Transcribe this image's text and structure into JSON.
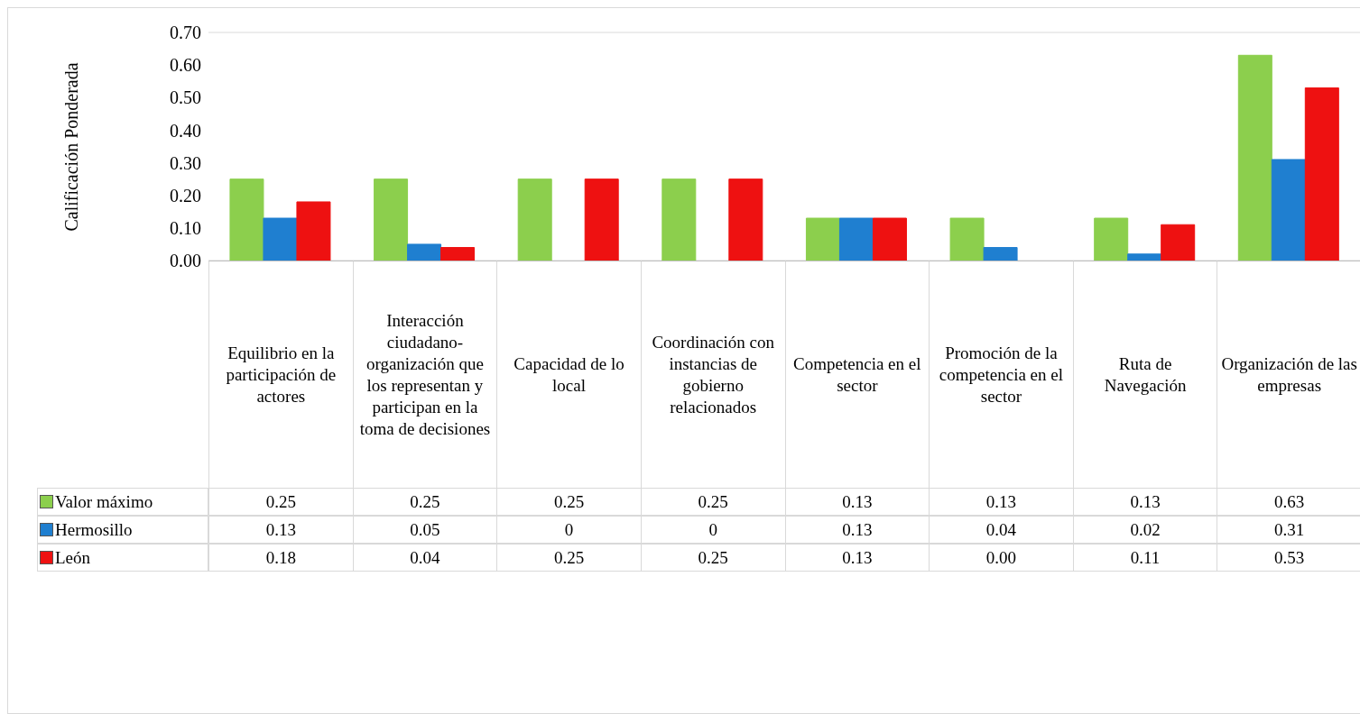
{
  "chart_data": {
    "type": "bar",
    "ylabel": "Calificación Ponderada",
    "categories": [
      "Equilibrio en la participación de actores",
      "Interacción ciudadano-organización que los representan y participan en la toma de decisiones",
      "Capacidad de lo local",
      "Coordinación con instancias de gobierno relacionados",
      "Competencia en el sector",
      "Promoción de la competencia en el sector",
      "Ruta de Navegación",
      "Organización de las empresas"
    ],
    "series": [
      {
        "name": "Valor máximo",
        "color": "#8ccf4d",
        "values": [
          0.25,
          0.25,
          0.25,
          0.25,
          0.13,
          0.13,
          0.13,
          0.63
        ],
        "value_labels": [
          "0.25",
          "0.25",
          "0.25",
          "0.25",
          "0.13",
          "0.13",
          "0.13",
          "0.63"
        ]
      },
      {
        "name": "Hermosillo",
        "color": "#1f7fd0",
        "values": [
          0.13,
          0.05,
          0,
          0,
          0.13,
          0.04,
          0.02,
          0.31
        ],
        "value_labels": [
          "0.13",
          "0.05",
          "0",
          "0",
          "0.13",
          "0.04",
          "0.02",
          "0.31"
        ]
      },
      {
        "name": "León",
        "color": "#ee1111",
        "values": [
          0.18,
          0.04,
          0.25,
          0.25,
          0.13,
          0.0,
          0.11,
          0.53
        ],
        "value_labels": [
          "0.18",
          "0.04",
          "0.25",
          "0.25",
          "0.13",
          "0.00",
          "0.11",
          "0.53"
        ]
      }
    ],
    "ylim": [
      0,
      0.7
    ],
    "yticks": [
      {
        "value": 0,
        "label": "0.00"
      },
      {
        "value": 0.1,
        "label": "0.10"
      },
      {
        "value": 0.2,
        "label": "0.20"
      },
      {
        "value": 0.3,
        "label": "0.30"
      },
      {
        "value": 0.4,
        "label": "0.40"
      },
      {
        "value": 0.5,
        "label": "0.50"
      },
      {
        "value": 0.6,
        "label": "0.60"
      },
      {
        "value": 0.7,
        "label": "0.70"
      }
    ],
    "grid": "y",
    "legend": "bottom left"
  }
}
